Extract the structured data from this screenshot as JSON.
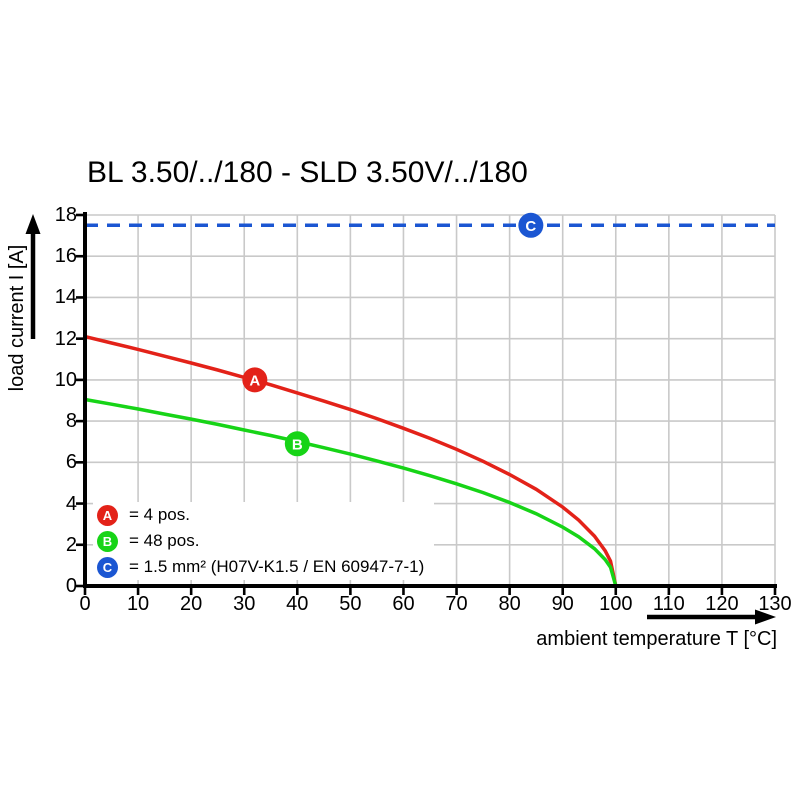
{
  "title": "BL 3.50/../180 - SLD 3.50V/../180",
  "axes": {
    "x": {
      "label": "ambient temperature T [°C]",
      "ticks": [
        "0",
        "10",
        "20",
        "30",
        "40",
        "50",
        "60",
        "70",
        "80",
        "90",
        "100",
        "110",
        "120",
        "130"
      ]
    },
    "y": {
      "label": "load current I [A]",
      "ticks": [
        "0",
        "2",
        "4",
        "6",
        "8",
        "10",
        "12",
        "14",
        "16",
        "18"
      ]
    }
  },
  "legend": {
    "items": [
      {
        "letter": "A",
        "color": "#e32219",
        "label": "= 4 pos."
      },
      {
        "letter": "B",
        "color": "#17d417",
        "label": "= 48 pos."
      },
      {
        "letter": "C",
        "color": "#1b56d2",
        "label": "= 1.5 mm² (H07V-K1.5 / EN 60947-7-1)"
      }
    ]
  },
  "colors": {
    "grid": "#c9c9c9",
    "axis": "#000000",
    "curve_a": "#e32219",
    "curve_b": "#17d417",
    "curve_c": "#1b56d2"
  },
  "chart_data": {
    "type": "line",
    "title": "BL 3.50/../180 - SLD 3.50V/../180",
    "xlabel": "ambient temperature T [°C]",
    "ylabel": "load current I [A]",
    "xlim": [
      0,
      130
    ],
    "ylim": [
      0,
      18
    ],
    "x_tick_step": 10,
    "y_tick_step": 2,
    "grid": true,
    "legend_position": "bottom-left-inside",
    "series": [
      {
        "name": "A = 4 pos.",
        "color": "#e32219",
        "style": "solid",
        "marker": {
          "letter": "A",
          "x": 32,
          "y": 10
        },
        "points": [
          [
            0,
            12.1
          ],
          [
            5,
            11.79
          ],
          [
            10,
            11.48
          ],
          [
            15,
            11.15
          ],
          [
            20,
            10.82
          ],
          [
            25,
            10.48
          ],
          [
            30,
            10.12
          ],
          [
            35,
            9.76
          ],
          [
            40,
            9.37
          ],
          [
            45,
            8.97
          ],
          [
            50,
            8.56
          ],
          [
            55,
            8.12
          ],
          [
            60,
            7.65
          ],
          [
            65,
            7.16
          ],
          [
            70,
            6.63
          ],
          [
            75,
            6.05
          ],
          [
            80,
            5.41
          ],
          [
            85,
            4.69
          ],
          [
            90,
            3.83
          ],
          [
            93,
            3.2
          ],
          [
            96,
            2.42
          ],
          [
            98,
            1.71
          ],
          [
            99,
            1.21
          ],
          [
            100,
            0
          ]
        ]
      },
      {
        "name": "B = 48 pos.",
        "color": "#17d417",
        "style": "solid",
        "marker": {
          "letter": "B",
          "x": 40,
          "y": 6.9
        },
        "points": [
          [
            0,
            9.05
          ],
          [
            5,
            8.82
          ],
          [
            10,
            8.59
          ],
          [
            15,
            8.34
          ],
          [
            20,
            8.1
          ],
          [
            25,
            7.84
          ],
          [
            30,
            7.57
          ],
          [
            35,
            7.3
          ],
          [
            40,
            7.01
          ],
          [
            45,
            6.71
          ],
          [
            50,
            6.4
          ],
          [
            55,
            6.07
          ],
          [
            60,
            5.72
          ],
          [
            65,
            5.35
          ],
          [
            70,
            4.96
          ],
          [
            75,
            4.53
          ],
          [
            80,
            4.05
          ],
          [
            85,
            3.51
          ],
          [
            90,
            2.86
          ],
          [
            93,
            2.39
          ],
          [
            96,
            1.81
          ],
          [
            98,
            1.28
          ],
          [
            99,
            0.91
          ],
          [
            100,
            0
          ]
        ]
      },
      {
        "name": "C = 1.5 mm² (H07V-K1.5 / EN 60947-7-1)",
        "color": "#1b56d2",
        "style": "dashed",
        "marker": {
          "letter": "C",
          "x": 84,
          "y": 17.5
        },
        "points": [
          [
            0,
            17.5
          ],
          [
            130,
            17.5
          ]
        ]
      }
    ]
  }
}
